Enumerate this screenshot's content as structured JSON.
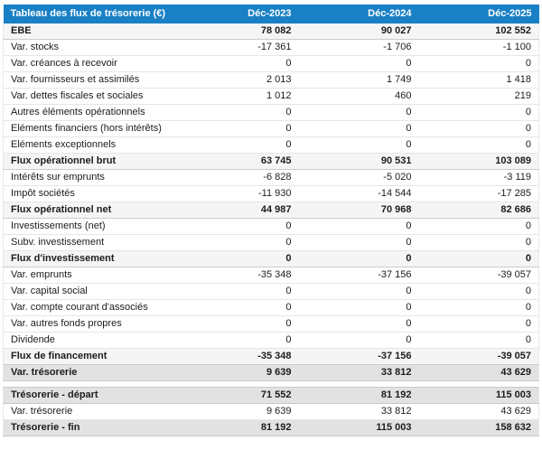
{
  "table": {
    "title": "Tableau des flux de trésorerie (€)",
    "columns": [
      "Déc-2023",
      "Déc-2024",
      "Déc-2025"
    ],
    "colors": {
      "header_bg": "#1a80c5",
      "header_text": "#ffffff",
      "section_bg": "#f5f5f5",
      "highlight_bg": "#e2e2e2"
    },
    "rows": [
      {
        "label": "EBE",
        "values": [
          "78 082",
          "90 027",
          "102 552"
        ],
        "style": "section"
      },
      {
        "label": "Var. stocks",
        "values": [
          "-17 361",
          "-1 706",
          "-1 100"
        ],
        "style": "normal"
      },
      {
        "label": "Var. créances à recevoir",
        "values": [
          "0",
          "0",
          "0"
        ],
        "style": "normal"
      },
      {
        "label": "Var. fournisseurs et assimilés",
        "values": [
          "2 013",
          "1 749",
          "1 418"
        ],
        "style": "normal"
      },
      {
        "label": "Var. dettes fiscales et sociales",
        "values": [
          "1 012",
          "460",
          "219"
        ],
        "style": "normal"
      },
      {
        "label": "Autres éléments opérationnels",
        "values": [
          "0",
          "0",
          "0"
        ],
        "style": "normal"
      },
      {
        "label": "Eléments financiers (hors intérêts)",
        "values": [
          "0",
          "0",
          "0"
        ],
        "style": "normal"
      },
      {
        "label": "Eléments exceptionnels",
        "values": [
          "0",
          "0",
          "0"
        ],
        "style": "normal"
      },
      {
        "label": "Flux opérationnel brut",
        "values": [
          "63 745",
          "90 531",
          "103 089"
        ],
        "style": "section"
      },
      {
        "label": "Intérêts sur emprunts",
        "values": [
          "-6 828",
          "-5 020",
          "-3 119"
        ],
        "style": "normal"
      },
      {
        "label": "Impôt sociétés",
        "values": [
          "-11 930",
          "-14 544",
          "-17 285"
        ],
        "style": "normal"
      },
      {
        "label": "Flux opérationnel net",
        "values": [
          "44 987",
          "70 968",
          "82 686"
        ],
        "style": "section"
      },
      {
        "label": "Investissements (net)",
        "values": [
          "0",
          "0",
          "0"
        ],
        "style": "normal"
      },
      {
        "label": "Subv. investissement",
        "values": [
          "0",
          "0",
          "0"
        ],
        "style": "normal"
      },
      {
        "label": "Flux d'investissement",
        "values": [
          "0",
          "0",
          "0"
        ],
        "style": "section"
      },
      {
        "label": "Var. emprunts",
        "values": [
          "-35 348",
          "-37 156",
          "-39 057"
        ],
        "style": "normal"
      },
      {
        "label": "Var. capital social",
        "values": [
          "0",
          "0",
          "0"
        ],
        "style": "normal"
      },
      {
        "label": "Var. compte courant d'associés",
        "values": [
          "0",
          "0",
          "0"
        ],
        "style": "normal"
      },
      {
        "label": "Var. autres fonds propres",
        "values": [
          "0",
          "0",
          "0"
        ],
        "style": "normal"
      },
      {
        "label": "Dividende",
        "values": [
          "0",
          "0",
          "0"
        ],
        "style": "normal"
      },
      {
        "label": "Flux de financement",
        "values": [
          "-35 348",
          "-37 156",
          "-39 057"
        ],
        "style": "section"
      },
      {
        "label": "Var. trésorerie",
        "values": [
          "9 639",
          "33 812",
          "43 629"
        ],
        "style": "highlight"
      }
    ],
    "summary_rows": [
      {
        "label": "Trésorerie - départ",
        "values": [
          "71 552",
          "81 192",
          "115 003"
        ],
        "style": "highlight"
      },
      {
        "label": "Var. trésorerie",
        "values": [
          "9 639",
          "33 812",
          "43 629"
        ],
        "style": "normal"
      },
      {
        "label": "Trésorerie - fin",
        "values": [
          "81 192",
          "115 003",
          "158 632"
        ],
        "style": "highlight"
      }
    ]
  },
  "chart_data": {
    "type": "table",
    "title": "Tableau des flux de trésorerie (€)",
    "columns": [
      "Déc-2023",
      "Déc-2024",
      "Déc-2025"
    ],
    "rows": [
      {
        "label": "EBE",
        "values": [
          78082,
          90027,
          102552
        ]
      },
      {
        "label": "Var. stocks",
        "values": [
          -17361,
          -1706,
          -1100
        ]
      },
      {
        "label": "Var. créances à recevoir",
        "values": [
          0,
          0,
          0
        ]
      },
      {
        "label": "Var. fournisseurs et assimilés",
        "values": [
          2013,
          1749,
          1418
        ]
      },
      {
        "label": "Var. dettes fiscales et sociales",
        "values": [
          1012,
          460,
          219
        ]
      },
      {
        "label": "Autres éléments opérationnels",
        "values": [
          0,
          0,
          0
        ]
      },
      {
        "label": "Eléments financiers (hors intérêts)",
        "values": [
          0,
          0,
          0
        ]
      },
      {
        "label": "Eléments exceptionnels",
        "values": [
          0,
          0,
          0
        ]
      },
      {
        "label": "Flux opérationnel brut",
        "values": [
          63745,
          90531,
          103089
        ]
      },
      {
        "label": "Intérêts sur emprunts",
        "values": [
          -6828,
          -5020,
          -3119
        ]
      },
      {
        "label": "Impôt sociétés",
        "values": [
          -11930,
          -14544,
          -17285
        ]
      },
      {
        "label": "Flux opérationnel net",
        "values": [
          44987,
          70968,
          82686
        ]
      },
      {
        "label": "Investissements (net)",
        "values": [
          0,
          0,
          0
        ]
      },
      {
        "label": "Subv. investissement",
        "values": [
          0,
          0,
          0
        ]
      },
      {
        "label": "Flux d'investissement",
        "values": [
          0,
          0,
          0
        ]
      },
      {
        "label": "Var. emprunts",
        "values": [
          -35348,
          -37156,
          -39057
        ]
      },
      {
        "label": "Var. capital social",
        "values": [
          0,
          0,
          0
        ]
      },
      {
        "label": "Var. compte courant d'associés",
        "values": [
          0,
          0,
          0
        ]
      },
      {
        "label": "Var. autres fonds propres",
        "values": [
          0,
          0,
          0
        ]
      },
      {
        "label": "Dividende",
        "values": [
          0,
          0,
          0
        ]
      },
      {
        "label": "Flux de financement",
        "values": [
          -35348,
          -37156,
          -39057
        ]
      },
      {
        "label": "Var. trésorerie",
        "values": [
          9639,
          33812,
          43629
        ]
      },
      {
        "label": "Trésorerie - départ",
        "values": [
          71552,
          81192,
          115003
        ]
      },
      {
        "label": "Var. trésorerie",
        "values": [
          9639,
          33812,
          43629
        ]
      },
      {
        "label": "Trésorerie - fin",
        "values": [
          81192,
          115003,
          158632
        ]
      }
    ]
  }
}
